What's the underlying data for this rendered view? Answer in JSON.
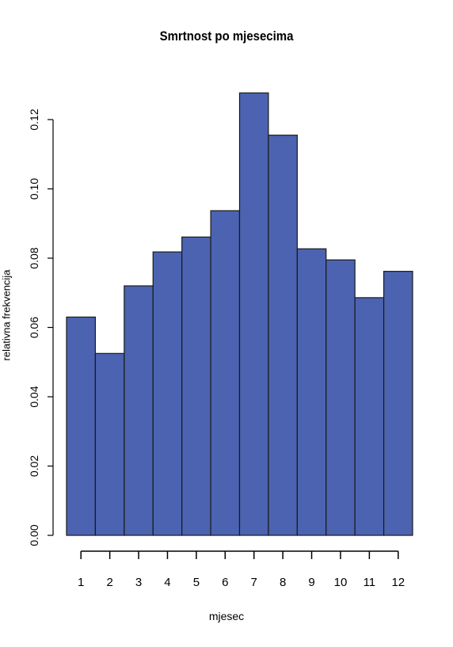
{
  "chart_data": {
    "type": "bar",
    "title": "Smrtnost po mjesecima",
    "xlabel": "mjesec",
    "ylabel": "relativna frekvencija",
    "categories": [
      "1",
      "2",
      "3",
      "4",
      "5",
      "6",
      "7",
      "8",
      "9",
      "10",
      "11",
      "12"
    ],
    "values": [
      0.063,
      0.0525,
      0.072,
      0.0818,
      0.0861,
      0.0937,
      0.1277,
      0.1155,
      0.0827,
      0.0795,
      0.0686,
      0.0762
    ],
    "yticks": [
      "0.00",
      "0.02",
      "0.04",
      "0.06",
      "0.08",
      "0.10",
      "0.12"
    ],
    "ylim": [
      0,
      0.13
    ],
    "bar_color": "#4b63b0",
    "grid": false,
    "legend": "none"
  }
}
